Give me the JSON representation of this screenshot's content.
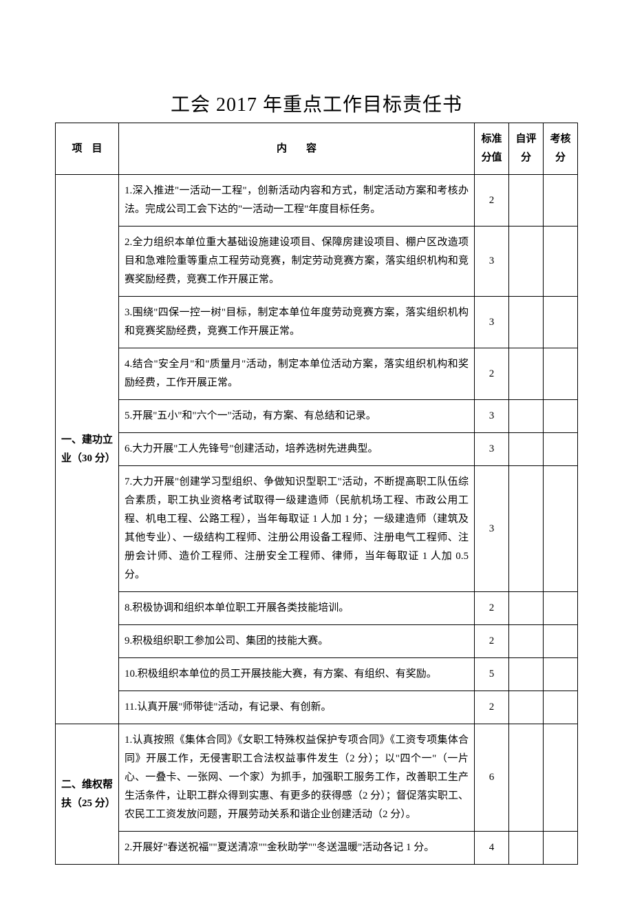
{
  "title": "工会 2017 年重点工作目标责任书",
  "headers": {
    "project": "项目",
    "content": "内容",
    "std_score": "标准分值",
    "self_score": "自评分",
    "check_score": "考核分"
  },
  "sections": [
    {
      "name": "一、建功立业（30 分）",
      "rows": [
        {
          "content": "1.深入推进\"一活动一工程\"，创新活动内容和方式，制定活动方案和考核办法。完成公司工会下达的\"一活动一工程\"年度目标任务。",
          "score": "2"
        },
        {
          "content": "2.全力组织本单位重大基础设施建设项目、保障房建设项目、棚户区改造项目和急难险重等重点工程劳动竞赛，制定劳动竞赛方案，落实组织机构和竞赛奖励经费，竞赛工作开展正常。",
          "score": "3"
        },
        {
          "content": "3.围绕\"四保一控一树\"目标，制定本单位年度劳动竞赛方案，落实组织机构和竞赛奖励经费，竞赛工作开展正常。",
          "score": "3"
        },
        {
          "content": "4.结合\"安全月\"和\"质量月\"活动，制定本单位活动方案，落实组织机构和奖励经费，工作开展正常。",
          "score": "2"
        },
        {
          "content": "5.开展\"五小\"和\"六个一\"活动，有方案、有总结和记录。",
          "score": "3"
        },
        {
          "content": "6.大力开展\"工人先锋号\"创建活动，培养选树先进典型。",
          "score": "3"
        },
        {
          "content": "7.大力开展\"创建学习型组织、争做知识型职工\"活动，不断提高职工队伍综合素质，职工执业资格考试取得一级建造师（民航机场工程、市政公用工程、机电工程、公路工程），当年每取证 1 人加 1 分；一级建造师（建筑及其他专业）、一级结构工程师、注册公用设备工程师、注册电气工程师、注册会计师、造价工程师、注册安全工程师、律师，当年每取证 1 人加 0.5 分。",
          "score": "3"
        },
        {
          "content": "8.积极协调和组织本单位职工开展各类技能培训。",
          "score": "2"
        },
        {
          "content": "9.积极组织职工参加公司、集团的技能大赛。",
          "score": "2"
        },
        {
          "content": "10.积极组织本单位的员工开展技能大赛，有方案、有组织、有奖励。",
          "score": "5"
        },
        {
          "content": "11.认真开展\"师带徒\"活动，有记录、有创新。",
          "score": "2"
        }
      ]
    },
    {
      "name": "二、维权帮扶（25 分）",
      "rows": [
        {
          "content": "1.认真按照《集体合同》《女职工特殊权益保护专项合同》《工资专项集体合同》开展工作，无侵害职工合法权益事件发生（2 分）；以\"四个一\"（一片心、一叠卡、一张网、一个家）为抓手，加强职工服务工作，改善职工生产生活条件，让职工群众得到实惠、有更多的获得感（2 分）；督促落实职工、农民工工资发放问题，开展劳动关系和谐企业创建活动（2 分）。",
          "score": "6"
        },
        {
          "content": "2.开展好\"春送祝福\"\"夏送清凉\"\"金秋助学\"\"冬送温暖\"活动各记 1 分。",
          "score": "4"
        }
      ]
    }
  ]
}
